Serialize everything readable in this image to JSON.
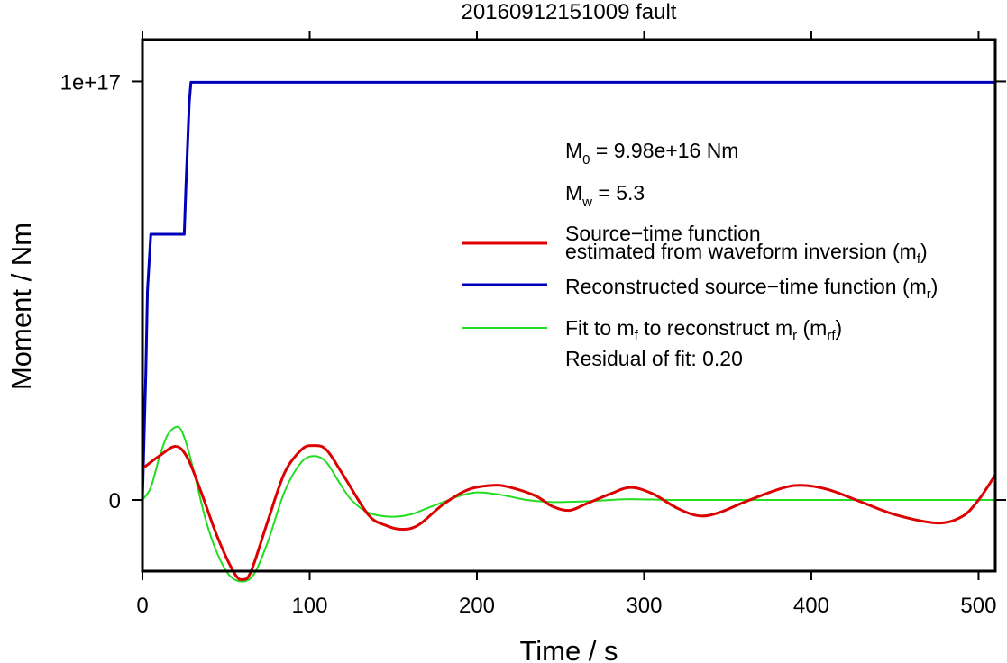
{
  "chart_data": {
    "type": "line",
    "title": "20160912151009 fault",
    "xlabel": "Time / s",
    "ylabel": "Moment / Nm",
    "xlim": [
      0,
      510
    ],
    "ylim": [
      -1.7e+16,
      1.1e+17
    ],
    "xticks": [
      0,
      100,
      200,
      300,
      400,
      500
    ],
    "xtick_labels": [
      "0",
      "100",
      "200",
      "300",
      "400",
      "500"
    ],
    "yticks": [
      0,
      1e+17
    ],
    "ytick_labels": [
      "0",
      "1e+17"
    ],
    "grid": false,
    "colors": {
      "mf": "#dd0000",
      "mr": "#0000bb",
      "mrf": "#22dd22"
    },
    "annotations": {
      "m0_main": "M",
      "m0_sub": "0",
      "m0_rest": " = 9.98e+16 Nm",
      "mw_main": "M",
      "mw_sub": "w",
      "mw_rest": " = 5.3",
      "residual": "Residual of fit: 0.20"
    },
    "legend": {
      "placement": "right",
      "mf_line1": "Source−time function",
      "mf_line2": "estimated from waveform inversion (m",
      "mf_sub": "f",
      "mf_close": ")",
      "mr_text": "Reconstructed source−time function (m",
      "mr_sub": "r",
      "mr_close": ")",
      "mrf_a": "Fit to m",
      "mrf_sub1": "f",
      "mrf_b": " to reconstruct m",
      "mrf_sub2": "r",
      "mrf_c": " (m",
      "mrf_sub3": "rf",
      "mrf_close": ")"
    },
    "series": [
      {
        "key": "mf",
        "x": [
          0,
          10,
          20,
          27,
          35,
          45,
          55,
          60,
          65,
          75,
          85,
          95,
          102,
          110,
          120,
          135,
          145,
          155,
          165,
          180,
          195,
          210,
          220,
          235,
          245,
          255,
          265,
          280,
          292,
          305,
          320,
          333,
          345,
          360,
          380,
          393,
          410,
          430,
          450,
          475,
          490,
          500,
          510
        ],
        "y": [
          7500000000000000.0,
          1.05e+16,
          1.28e+16,
          1e+16,
          2000000000000000.0,
          -9000000000000000.0,
          -1.75e+16,
          -1.9e+16,
          -1.7e+16,
          -5000000000000000.0,
          6500000000000000.0,
          1.2e+16,
          1.3e+16,
          1.2e+16,
          6000000000000000.0,
          -3500000000000000.0,
          -6000000000000000.0,
          -7000000000000000.0,
          -6000000000000000.0,
          -1000000000000000.0,
          2500000000000000.0,
          3500000000000000.0,
          3000000000000000.0,
          1000000000000000.0,
          -1500000000000000.0,
          -2500000000000000.0,
          -1000000000000000.0,
          1500000000000000.0,
          3000000000000000.0,
          1500000000000000.0,
          -2000000000000000.0,
          -3800000000000000.0,
          -3000000000000000.0,
          -500000000000000.0,
          2500000000000000.0,
          3500000000000000.0,
          2500000000000000.0,
          -500000000000000.0,
          -3500000000000000.0,
          -5500000000000000.0,
          -4000000000000000.0,
          0,
          6000000000000000.0
        ]
      },
      {
        "key": "mr",
        "x": [
          0,
          1,
          2,
          3,
          5,
          25,
          26,
          27,
          28,
          29,
          510
        ],
        "y": [
          0,
          1.5e+16,
          3e+16,
          5e+16,
          6.35e+16,
          6.35e+16,
          7.5e+16,
          8.5e+16,
          9.5e+16,
          9.98e+16,
          9.98e+16
        ]
      },
      {
        "key": "mrf",
        "x": [
          0,
          5,
          10,
          15,
          21,
          25,
          30,
          38,
          45,
          52,
          60,
          67,
          75,
          85,
          95,
          103,
          110,
          118,
          125,
          135,
          148,
          160,
          170,
          180,
          190,
          200,
          210,
          220,
          230,
          245,
          260,
          275,
          290,
          305,
          320,
          340,
          360,
          380,
          400,
          450,
          510
        ],
        "y": [
          0,
          3000000000000000.0,
          1e+16,
          1.55e+16,
          1.75e+16,
          1.5e+16,
          8000000000000000.0,
          -5000000000000000.0,
          -1.3e+16,
          -1.8e+16,
          -1.95e+16,
          -1.75e+16,
          -1e+16,
          2000000000000000.0,
          9000000000000000.0,
          1.05e+16,
          9000000000000000.0,
          4000000000000000.0,
          0,
          -3000000000000000.0,
          -4000000000000000.0,
          -3500000000000000.0,
          -2000000000000000.0,
          -500000000000000.0,
          1000000000000000.0,
          1800000000000000.0,
          1500000000000000.0,
          800000000000000.0,
          0,
          -500000000000000.0,
          -400000000000000.0,
          -100000000000000.0,
          200000000000000.0,
          100000000000000.0,
          0,
          0,
          0,
          0,
          0,
          0,
          0
        ]
      }
    ]
  }
}
